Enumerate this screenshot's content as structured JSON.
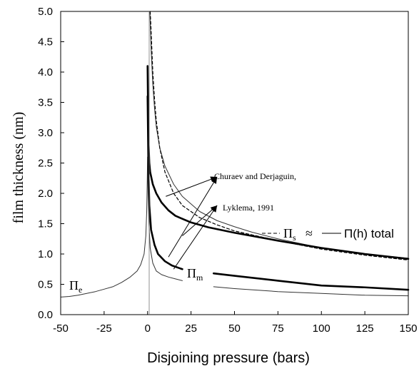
{
  "chart_data": {
    "type": "line",
    "xlabel": "Disjoining pressure (bars)",
    "ylabel": "film thickness (nm)",
    "xlim": [
      -50,
      150
    ],
    "ylim": [
      0,
      5
    ],
    "x_ticks": [
      "-50",
      "-25",
      "0",
      "25",
      "50",
      "75",
      "100",
      "125",
      "150"
    ],
    "y_ticks": [
      "0.0",
      "0.5",
      "1.0",
      "1.5",
      "2.0",
      "2.5",
      "3.0",
      "3.5",
      "4.0",
      "4.5",
      "5.0"
    ],
    "grid": false,
    "legend": {
      "dashed_symbol": "Π",
      "dashed_subscript": "s",
      "approx": "≈",
      "solid_label": "Π(h) total"
    },
    "annotations": {
      "ref1": "Churaev and Derjaguin,",
      "ref2": "Lyklema, 1991",
      "pi_m_symbol": "Π",
      "pi_m_subscript": "m",
      "pi_e_symbol": "Π",
      "pi_e_subscript": "e"
    },
    "series": [
      {
        "style": "thin",
        "color": "#333333",
        "segments": [
          [
            [
              -50,
              0.29
            ],
            [
              -45,
              0.3
            ],
            [
              -40,
              0.32
            ],
            [
              -35,
              0.35
            ],
            [
              -30,
              0.38
            ],
            [
              -25,
              0.42
            ],
            [
              -20,
              0.46
            ],
            [
              -15,
              0.53
            ],
            [
              -10,
              0.62
            ],
            [
              -6,
              0.72
            ],
            [
              -4,
              0.82
            ],
            [
              -2,
              1.0
            ],
            [
              -1,
              1.3
            ],
            [
              -0.5,
              1.7
            ],
            [
              -0.2,
              2.2
            ],
            [
              0,
              2.6
            ],
            [
              0.3,
              2.0
            ],
            [
              0.8,
              1.5
            ],
            [
              1.5,
              1.1
            ],
            [
              3,
              0.85
            ],
            [
              5,
              0.72
            ],
            [
              8,
              0.66
            ],
            [
              12,
              0.62
            ],
            [
              16,
              0.59
            ],
            [
              20,
              0.56
            ]
          ],
          [
            [
              38,
              0.46
            ],
            [
              50,
              0.43
            ],
            [
              75,
              0.38
            ],
            [
              100,
              0.35
            ],
            [
              125,
              0.32
            ],
            [
              150,
              0.31
            ]
          ],
          [
            [
              1.3,
              5.0
            ],
            [
              2,
              4.4
            ],
            [
              3,
              3.8
            ],
            [
              4,
              3.4
            ],
            [
              5,
              3.1
            ],
            [
              7,
              2.75
            ],
            [
              10,
              2.45
            ],
            [
              15,
              2.15
            ],
            [
              20,
              1.95
            ],
            [
              30,
              1.7
            ],
            [
              40,
              1.55
            ],
            [
              50,
              1.45
            ],
            [
              60,
              1.36
            ],
            [
              75,
              1.25
            ],
            [
              100,
              1.1
            ],
            [
              125,
              1.0
            ],
            [
              150,
              0.93
            ]
          ]
        ]
      },
      {
        "style": "thick",
        "color": "#000000",
        "segments": [
          [
            [
              0,
              4.1
            ],
            [
              0.3,
              3.3
            ],
            [
              0.6,
              2.8
            ],
            [
              1,
              2.5
            ],
            [
              1.5,
              2.35
            ],
            [
              3,
              2.15
            ],
            [
              5,
              2.0
            ],
            [
              8,
              1.85
            ],
            [
              12,
              1.72
            ],
            [
              16,
              1.63
            ],
            [
              20,
              1.58
            ],
            [
              25,
              1.52
            ],
            [
              35,
              1.44
            ],
            [
              50,
              1.35
            ],
            [
              75,
              1.22
            ],
            [
              100,
              1.1
            ],
            [
              125,
              1.0
            ],
            [
              150,
              0.92
            ]
          ],
          [
            [
              0,
              3.6
            ],
            [
              0.5,
              2.4
            ],
            [
              1,
              1.8
            ],
            [
              2,
              1.4
            ],
            [
              4,
              1.15
            ],
            [
              6,
              1.0
            ],
            [
              10,
              0.88
            ],
            [
              14,
              0.81
            ],
            [
              18,
              0.77
            ],
            [
              20,
              0.75
            ]
          ],
          [
            [
              38,
              0.68
            ],
            [
              50,
              0.64
            ],
            [
              75,
              0.56
            ],
            [
              100,
              0.48
            ],
            [
              125,
              0.45
            ],
            [
              150,
              0.41
            ]
          ]
        ]
      },
      {
        "style": "dashed",
        "color": "#000000",
        "segments": [
          [
            [
              1.5,
              5.0
            ],
            [
              2,
              4.7
            ],
            [
              3,
              4.0
            ],
            [
              4,
              3.55
            ],
            [
              5,
              3.2
            ],
            [
              7,
              2.75
            ],
            [
              10,
              2.35
            ],
            [
              15,
              2.0
            ],
            [
              20,
              1.8
            ],
            [
              30,
              1.6
            ],
            [
              40,
              1.48
            ],
            [
              50,
              1.38
            ],
            [
              75,
              1.22
            ],
            [
              100,
              1.08
            ],
            [
              125,
              0.98
            ],
            [
              150,
              0.9
            ]
          ]
        ]
      }
    ]
  }
}
